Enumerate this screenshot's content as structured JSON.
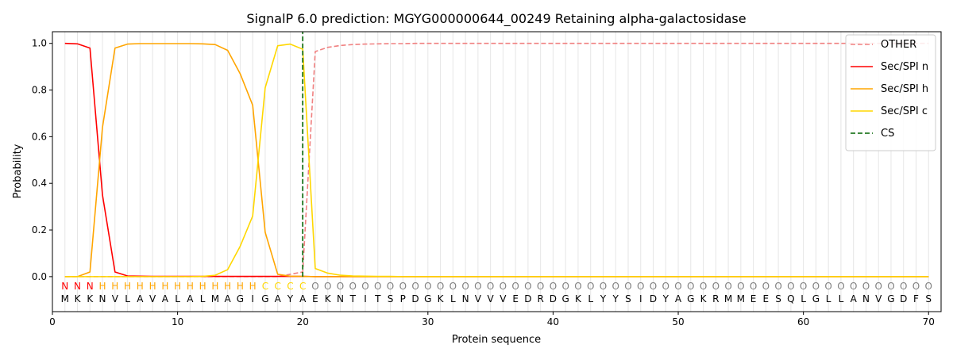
{
  "chart_data": {
    "type": "line",
    "title": "SignalP 6.0 prediction: MGYG000000644_00249 Retaining alpha-galactosidase",
    "xlabel": "Protein sequence",
    "ylabel": "Probability",
    "xlim": [
      0,
      71
    ],
    "ylim": [
      -0.15,
      1.05
    ],
    "xticks": [
      0,
      10,
      20,
      30,
      40,
      50,
      60,
      70
    ],
    "yticks": [
      0.0,
      0.2,
      0.4,
      0.6,
      0.8,
      1.0
    ],
    "legend_position": "top-right",
    "grid": "vertical lines at each residue",
    "cleavage_site": 20,
    "sequence": "MKKNVLAVALALMAGIGAYAEKNTITSPDGKLNVVVEDRDGKLYYSIDYAGKRMMEESQLGLLANVGDFS",
    "labels": "NNNHHHHHHHHHHHHHCCCCOOOOOOOOOOOOOOOOOOOOOOOOOOOOOOOOOOOOOOOOOOOOOOOOOO",
    "label_colors": {
      "N": "#ff0000",
      "H": "#ffa500",
      "C": "#ffd700",
      "O": "#808080"
    },
    "series": [
      {
        "name": "OTHER",
        "color": "#f08080",
        "dash": "dashed",
        "values": [
          0,
          0,
          0,
          0,
          0,
          0,
          0,
          0,
          0,
          0,
          0,
          0,
          0,
          0,
          0,
          0,
          0,
          0,
          0.01,
          0.02,
          0.965,
          0.983,
          0.991,
          0.995,
          0.997,
          0.998,
          0.999,
          0.999,
          1,
          1,
          1,
          1,
          1,
          1,
          1,
          1,
          1,
          1,
          1,
          1,
          1,
          1,
          1,
          1,
          1,
          1,
          1,
          1,
          1,
          1,
          1,
          1,
          1,
          1,
          1,
          1,
          1,
          1,
          1,
          1,
          1,
          1,
          1,
          1,
          1,
          1,
          1,
          1,
          1,
          1
        ]
      },
      {
        "name": "Sec/SPI n",
        "color": "#ff0000",
        "dash": "solid",
        "values": [
          1.0,
          0.998,
          0.98,
          0.35,
          0.02,
          0.003,
          0.002,
          0.001,
          0.001,
          0.001,
          0.001,
          0.001,
          0.001,
          0.001,
          0.001,
          0.001,
          0.001,
          0.001,
          0.001,
          0.001,
          0,
          0,
          0,
          0,
          0,
          0,
          0,
          0,
          0,
          0,
          0,
          0,
          0,
          0,
          0,
          0,
          0,
          0,
          0,
          0,
          0,
          0,
          0,
          0,
          0,
          0,
          0,
          0,
          0,
          0,
          0,
          0,
          0,
          0,
          0,
          0,
          0,
          0,
          0,
          0,
          0,
          0,
          0,
          0,
          0,
          0,
          0,
          0,
          0,
          0
        ]
      },
      {
        "name": "Sec/SPI h",
        "color": "#ffa500",
        "dash": "solid",
        "values": [
          0,
          0,
          0.02,
          0.64,
          0.98,
          0.997,
          0.999,
          0.999,
          0.999,
          0.999,
          0.999,
          0.998,
          0.995,
          0.97,
          0.87,
          0.735,
          0.19,
          0.01,
          0.002,
          0.001,
          0,
          0,
          0,
          0,
          0,
          0,
          0,
          0,
          0,
          0,
          0,
          0,
          0,
          0,
          0,
          0,
          0,
          0,
          0,
          0,
          0,
          0,
          0,
          0,
          0,
          0,
          0,
          0,
          0,
          0,
          0,
          0,
          0,
          0,
          0,
          0,
          0,
          0,
          0,
          0,
          0,
          0,
          0,
          0,
          0,
          0,
          0,
          0,
          0,
          0
        ]
      },
      {
        "name": "Sec/SPI c",
        "color": "#ffd700",
        "dash": "solid",
        "values": [
          0,
          0,
          0,
          0,
          0,
          0,
          0,
          0,
          0,
          0,
          0,
          0.001,
          0.006,
          0.03,
          0.13,
          0.26,
          0.81,
          0.99,
          0.997,
          0.975,
          0.035,
          0.015,
          0.006,
          0.003,
          0.002,
          0.001,
          0.001,
          0,
          0,
          0,
          0,
          0,
          0,
          0,
          0,
          0,
          0,
          0,
          0,
          0,
          0,
          0,
          0,
          0,
          0,
          0,
          0,
          0,
          0,
          0,
          0,
          0,
          0,
          0,
          0,
          0,
          0,
          0,
          0,
          0,
          0,
          0,
          0,
          0,
          0,
          0,
          0,
          0,
          0,
          0
        ]
      },
      {
        "name": "CS",
        "color": "#006400",
        "dash": "dashed",
        "x": [
          20,
          20
        ],
        "values": [
          0,
          1.05
        ]
      }
    ]
  }
}
